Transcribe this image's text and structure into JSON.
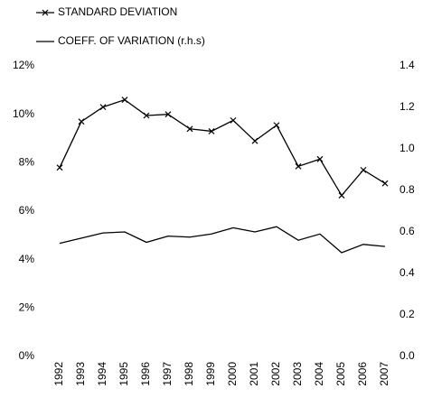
{
  "chart_data": {
    "type": "line",
    "categories": [
      "1992",
      "1993",
      "1994",
      "1995",
      "1996",
      "1997",
      "1998",
      "1999",
      "2000",
      "2001",
      "2002",
      "2003",
      "2004",
      "2005",
      "2006",
      "2007"
    ],
    "series": [
      {
        "name": "STANDARD DEVIATION",
        "color": "#000000",
        "marker": "x",
        "values": [
          7.8,
          9.7,
          10.3,
          10.6,
          9.95,
          10.0,
          9.4,
          9.3,
          9.75,
          8.9,
          9.55,
          7.85,
          8.15,
          6.65,
          7.7,
          7.15
        ]
      },
      {
        "name": "COEFF. OF VARIATION (r.h.s)",
        "color": "#000000",
        "axis": "y2",
        "values": [
          0.545,
          0.57,
          0.595,
          0.6,
          0.55,
          0.58,
          0.575,
          0.59,
          0.62,
          0.6,
          0.625,
          0.56,
          0.59,
          0.5,
          0.54,
          0.53
        ]
      }
    ],
    "ylim": [
      0,
      12
    ],
    "yticks": [
      {
        "value": 0,
        "label": "0%"
      },
      {
        "value": 2,
        "label": "2%"
      },
      {
        "value": 4,
        "label": "4%"
      },
      {
        "value": 6,
        "label": "6%"
      },
      {
        "value": 8,
        "label": "8%"
      },
      {
        "value": 10,
        "label": "10%"
      },
      {
        "value": 12,
        "label": "12%"
      }
    ],
    "y2lim": [
      0,
      1.4
    ],
    "y2ticks": [
      {
        "value": 0,
        "label": "0.0"
      },
      0.2,
      0.4,
      0.6,
      0.8,
      {
        "value": 1,
        "label": "1.0"
      },
      1.2,
      1.4
    ],
    "legend": "top-left",
    "grid": false
  }
}
